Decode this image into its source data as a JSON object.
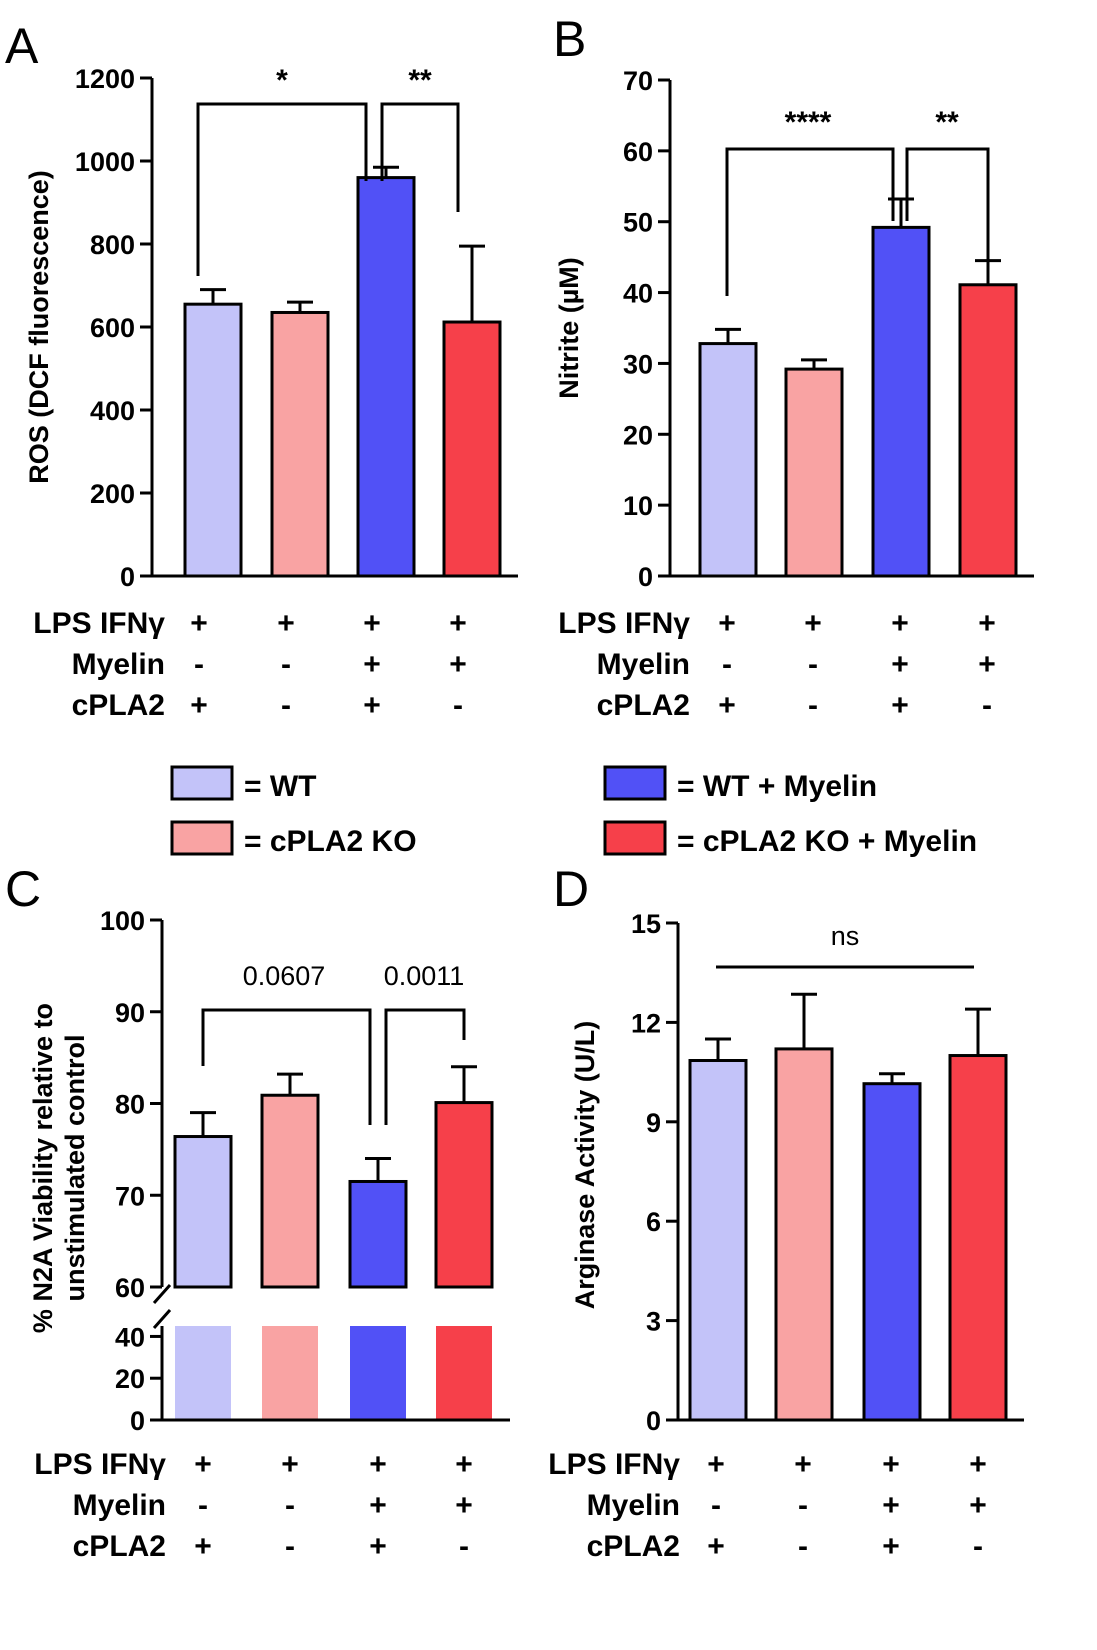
{
  "colors": {
    "wt": "#c3c3f9",
    "cpla2_ko": "#f9a3a3",
    "wt_myelin": "#5151f6",
    "cpla2_ko_myelin": "#f6404a"
  },
  "legend": [
    {
      "label": "= WT",
      "color": "#c3c3f9"
    },
    {
      "label": "= WT + Myelin",
      "color": "#5151f6"
    },
    {
      "label": "= cPLA2 KO",
      "color": "#f9a3a3"
    },
    {
      "label": "= cPLA2 KO + Myelin",
      "color": "#f6404a"
    }
  ],
  "conditions": {
    "rows": [
      {
        "label": "LPS IFNγ",
        "values": [
          "+",
          "+",
          "+",
          "+"
        ]
      },
      {
        "label": "Myelin",
        "values": [
          "-",
          "-",
          "+",
          "+"
        ]
      },
      {
        "label": "cPLA2",
        "values": [
          "+",
          "-",
          "+",
          "-"
        ]
      }
    ]
  },
  "chart_data": [
    {
      "panel": "A",
      "type": "bar",
      "ylabel": "ROS (DCF fluorescence)",
      "ylim": [
        0,
        1200
      ],
      "yticks": [
        "0",
        "200",
        "400",
        "600",
        "800",
        "1000",
        "1200"
      ],
      "categories": [
        "WT",
        "cPLA2 KO",
        "WT + Myelin",
        "cPLA2 KO + Myelin"
      ],
      "values": [
        655,
        635,
        960,
        612
      ],
      "errors": [
        35,
        25,
        25,
        183
      ],
      "significance": [
        {
          "from": 0,
          "to": 2,
          "label": "*"
        },
        {
          "from": 2,
          "to": 3,
          "label": "**"
        }
      ]
    },
    {
      "panel": "B",
      "type": "bar",
      "ylabel": "Nitrite (µM)",
      "ylim": [
        0,
        70
      ],
      "yticks": [
        "0",
        "10",
        "20",
        "30",
        "40",
        "50",
        "60",
        "70"
      ],
      "categories": [
        "WT",
        "cPLA2 KO",
        "WT + Myelin",
        "cPLA2 KO + Myelin"
      ],
      "values": [
        32.8,
        29.2,
        49.2,
        41.1
      ],
      "errors": [
        2.0,
        1.3,
        4.0,
        3.4
      ],
      "significance": [
        {
          "from": 0,
          "to": 2,
          "label": "****"
        },
        {
          "from": 2,
          "to": 3,
          "label": "**"
        }
      ]
    },
    {
      "panel": "C",
      "type": "bar",
      "ylabel": "% N2A Viability relative to unstimulated control",
      "ylabel_lines": [
        "% N2A Viability relative to",
        "unstimulated control"
      ],
      "ylim": [
        0,
        100
      ],
      "axis_break": [
        45,
        60
      ],
      "yticks": [
        "0",
        "20",
        "40",
        "60",
        "70",
        "80",
        "90",
        "100"
      ],
      "categories": [
        "WT",
        "cPLA2 KO",
        "WT + Myelin",
        "cPLA2 KO + Myelin"
      ],
      "values": [
        76.4,
        80.9,
        71.5,
        80.1
      ],
      "errors": [
        2.6,
        2.3,
        2.5,
        3.9
      ],
      "significance": [
        {
          "from": 0,
          "to": 2,
          "label": "0.0607"
        },
        {
          "from": 2,
          "to": 3,
          "label": "0.0011"
        }
      ]
    },
    {
      "panel": "D",
      "type": "bar",
      "ylabel": "Arginase Activity (U/L)",
      "ylim": [
        0,
        15
      ],
      "yticks": [
        "0",
        "3",
        "6",
        "9",
        "12",
        "15"
      ],
      "categories": [
        "WT",
        "cPLA2 KO",
        "WT + Myelin",
        "cPLA2 KO + Myelin"
      ],
      "values": [
        10.85,
        11.2,
        10.15,
        11.0
      ],
      "errors": [
        0.65,
        1.65,
        0.3,
        1.4
      ],
      "significance": [
        {
          "from": 0,
          "to": 3,
          "label": "ns"
        }
      ]
    }
  ]
}
